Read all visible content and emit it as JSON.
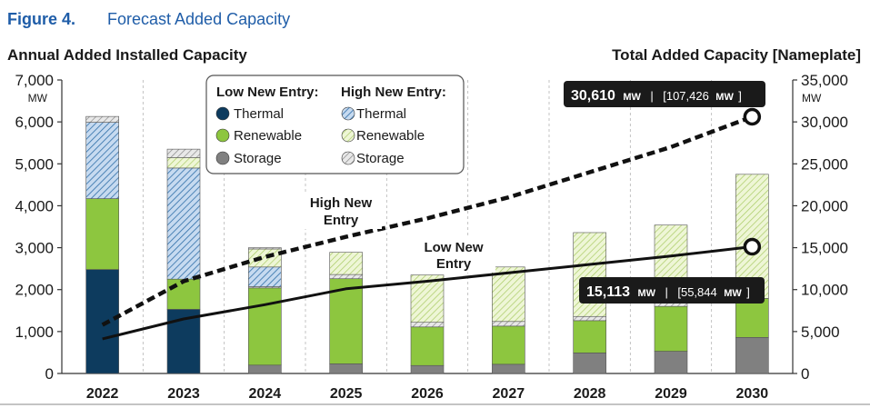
{
  "figure": {
    "label": "Figure 4.",
    "title": "Forecast Added Capacity"
  },
  "chart_data": {
    "type": "bar",
    "left_title": "Annual Added Installed Capacity",
    "right_title": "Total Added Capacity [Nameplate]",
    "left_unit": "MW",
    "right_unit": "MW",
    "left_ylim": [
      0,
      7000
    ],
    "right_ylim": [
      0,
      35000
    ],
    "left_ticks": [
      "0",
      "1,000",
      "2,000",
      "3,000",
      "4,000",
      "5,000",
      "6,000",
      "7,000"
    ],
    "right_ticks": [
      "0",
      "5,000",
      "10,000",
      "15,000",
      "20,000",
      "25,000",
      "30,000",
      "35,000"
    ],
    "categories": [
      "2022",
      "2023",
      "2024",
      "2025",
      "2026",
      "2027",
      "2028",
      "2029",
      "2030"
    ],
    "grid": "vertical-dashed",
    "legend_position": "top-center",
    "legend": {
      "low_header": "Low New Entry:",
      "high_header": "High New Entry:",
      "low_items": [
        "Thermal",
        "Renewable",
        "Storage"
      ],
      "high_items": [
        "Thermal",
        "Renewable",
        "Storage"
      ]
    },
    "colors": {
      "thermal": "#0d3b5e",
      "renewable": "#8dc63f",
      "storage": "#808080",
      "high_thermal_bg": "#c6daf0",
      "high_thermal_line": "#2f6ea8",
      "high_renewable_bg": "#e6f2c8",
      "high_renewable_line": "#9cc24a",
      "high_storage_bg": "#e3e3e3",
      "high_storage_line": "#888888"
    },
    "series": [
      {
        "name": "Low New Entry Storage",
        "values": [
          0,
          0,
          200,
          230,
          190,
          220,
          490,
          530,
          860
        ]
      },
      {
        "name": "Low New Entry Thermal",
        "values": [
          2480,
          1530,
          0,
          0,
          0,
          0,
          0,
          0,
          0
        ]
      },
      {
        "name": "Low New Entry Renewable",
        "values": [
          1690,
          720,
          1840,
          2030,
          920,
          910,
          770,
          1070,
          930
        ]
      },
      {
        "name": "High New Entry Storage",
        "values": [
          0,
          0,
          30,
          100,
          110,
          110,
          100,
          100,
          0
        ]
      },
      {
        "name": "High New Entry Thermal",
        "values": [
          1820,
          2650,
          470,
          0,
          0,
          0,
          0,
          0,
          0
        ]
      },
      {
        "name": "High New Entry Renewable",
        "values": [
          0,
          250,
          430,
          530,
          1130,
          1300,
          2000,
          1840,
          2960
        ]
      },
      {
        "name": "High New Entry Storage",
        "values": [
          140,
          200,
          30,
          0,
          0,
          0,
          0,
          0,
          0
        ]
      }
    ],
    "lines": [
      {
        "name": "Low New Entry",
        "values": [
          4120,
          6500,
          8200,
          10100,
          11000,
          12000,
          13000,
          14000,
          15113
        ]
      },
      {
        "name": "High New Entry",
        "values": [
          5800,
          11000,
          13900,
          16300,
          18500,
          21000,
          24000,
          27000,
          30610
        ]
      }
    ],
    "annotations": {
      "high_label_1": "High New",
      "high_label_2": "Entry",
      "low_label_1": "Low New",
      "low_label_2": "Entry",
      "high_callout": {
        "value": "30,610",
        "unit": "MW",
        "sep": "|",
        "bracket": "[107,426",
        "bracket_unit": "MW",
        "close": "]"
      },
      "low_callout": {
        "value": "15,113",
        "unit": "MW",
        "sep": "|",
        "bracket": "[55,844",
        "bracket_unit": "MW",
        "close": "]"
      }
    }
  }
}
